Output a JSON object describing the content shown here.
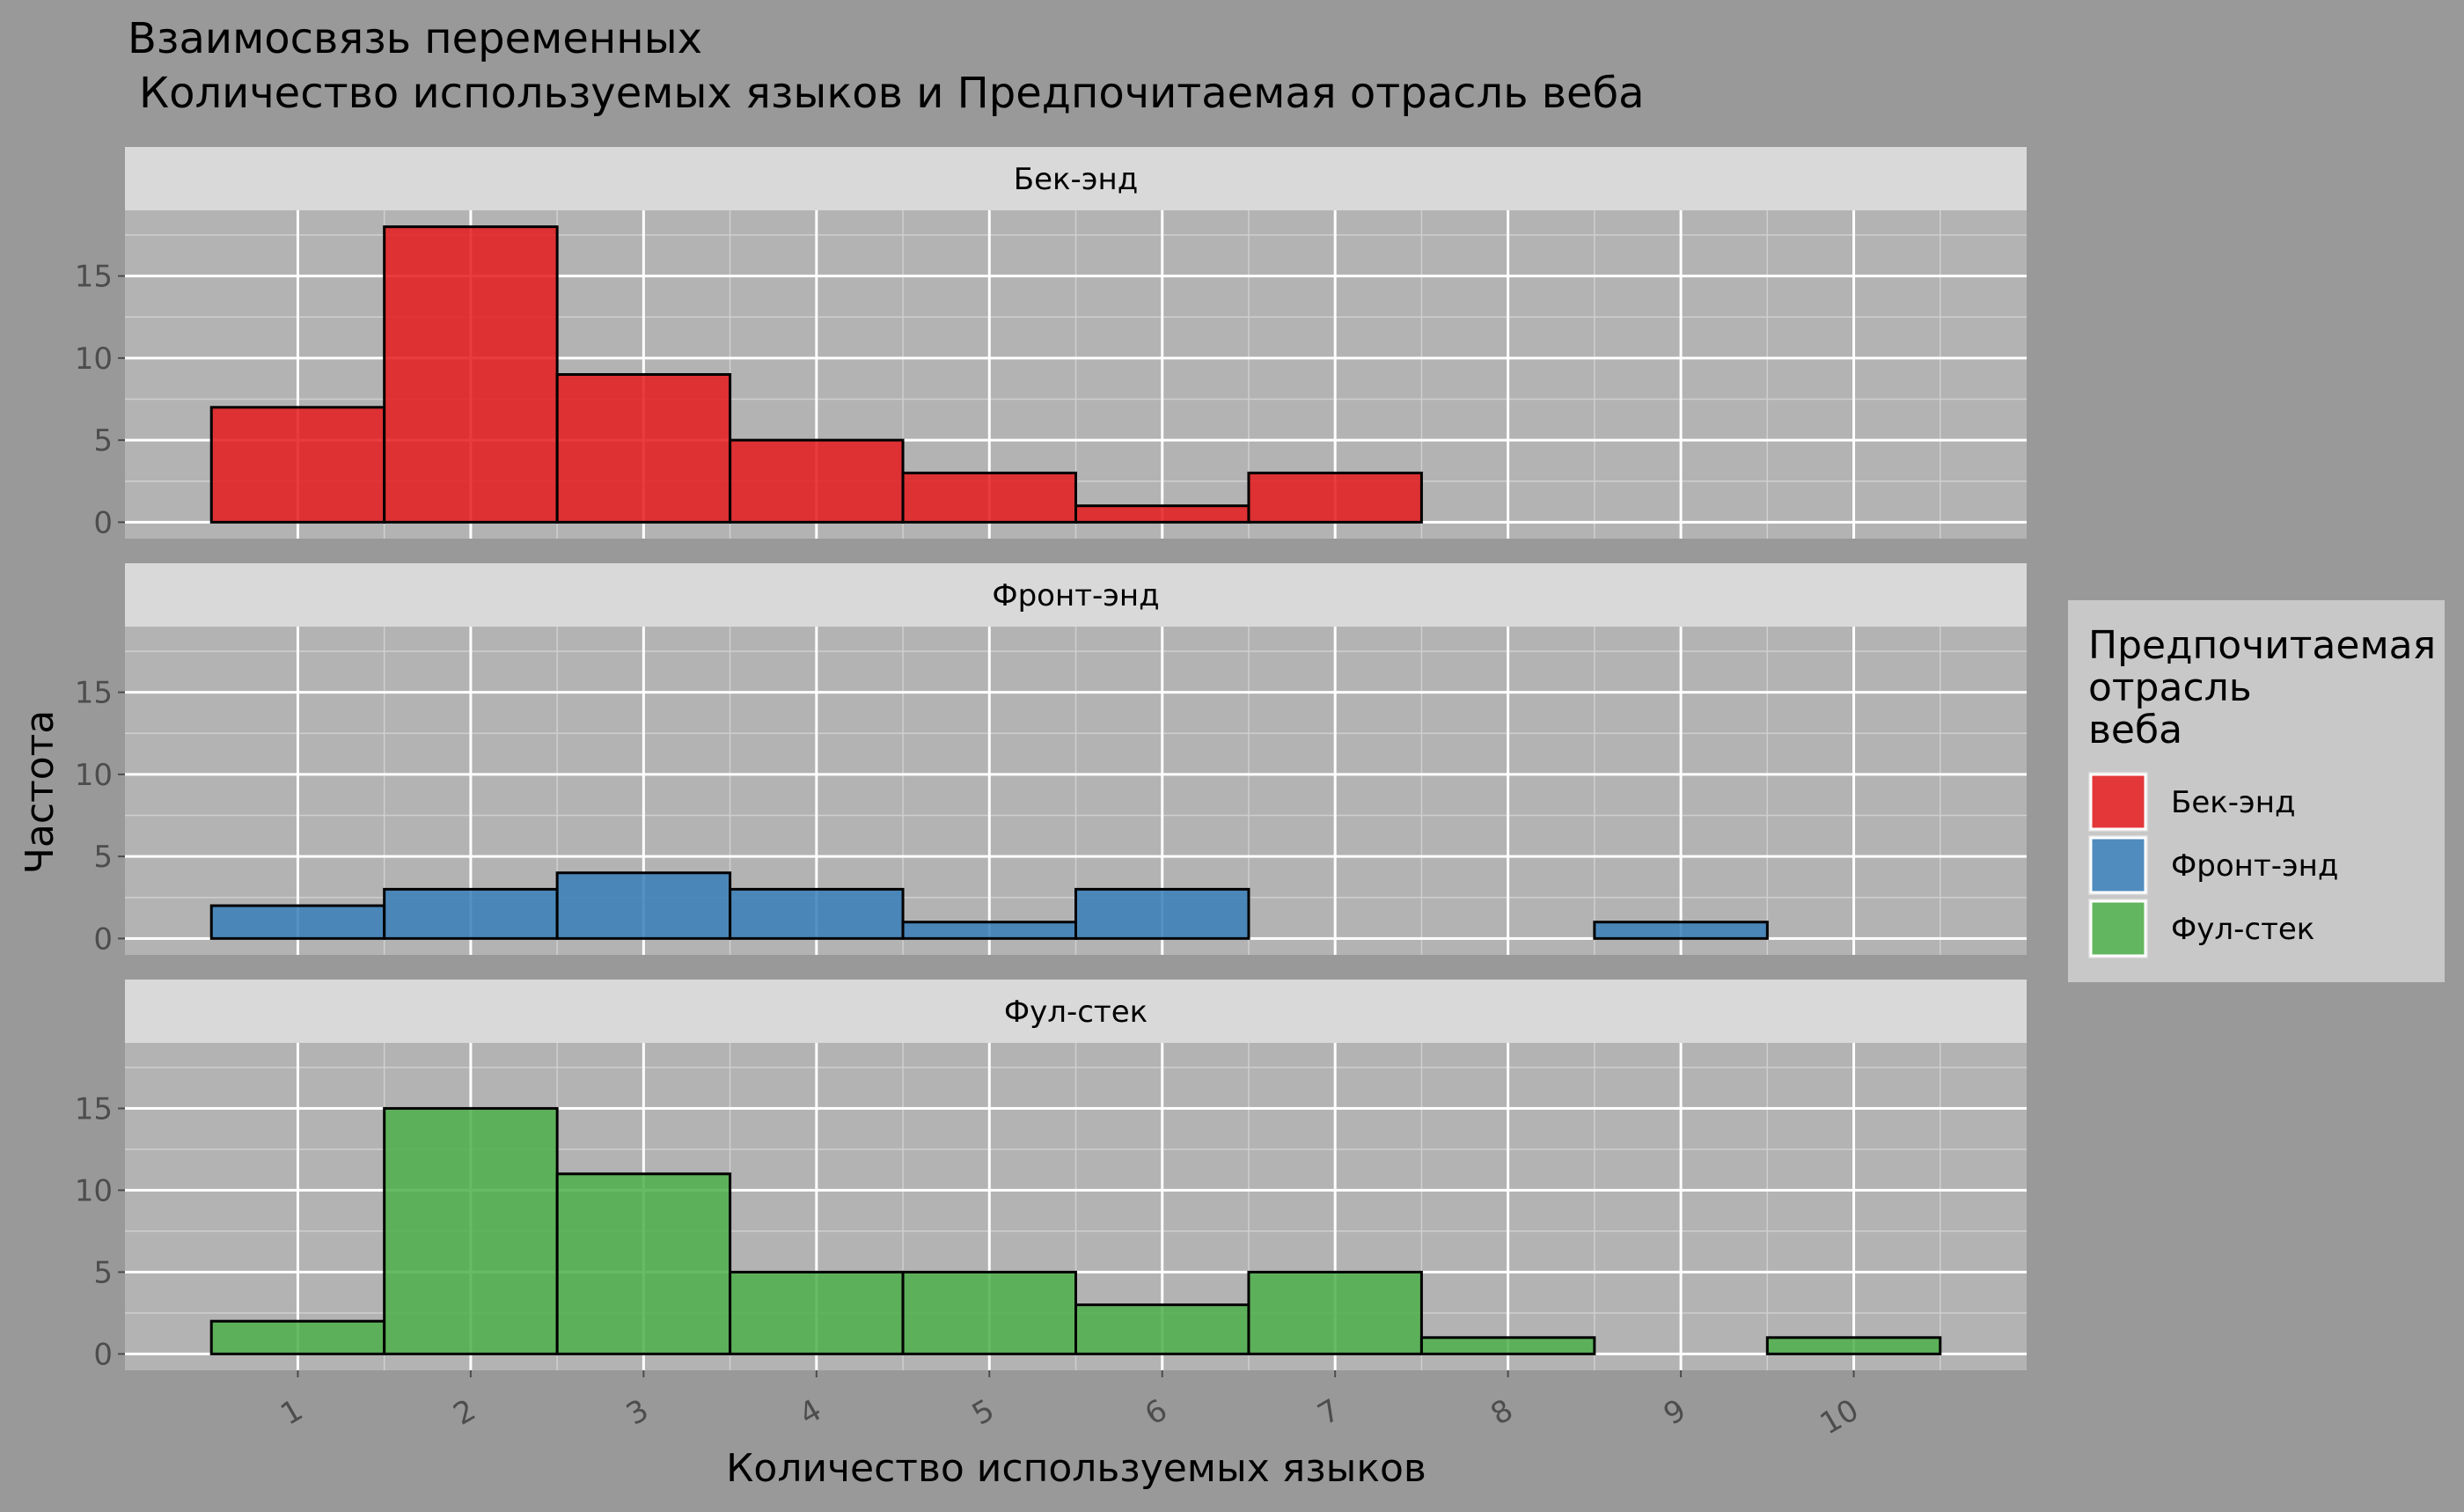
{
  "colors": {
    "background": "#999999",
    "panel": "#b3b3b3",
    "strip": "#d9d9d9",
    "legend_bg": "#c8c8c8",
    "grid_major": "#ffffff",
    "grid_minor": "#cfcfcf",
    "bar_outline": "#000000",
    "text": "#000000",
    "tick_text": "#4d4d4d"
  },
  "chart_data": {
    "type": "bar",
    "title": "Взаимосвязь переменных",
    "subtitle": "Количество используемых языков и Предпочитаемая отрасль веба",
    "xlabel": "Количество используемых языков",
    "ylabel": "Частота",
    "categories": [
      1,
      2,
      3,
      4,
      5,
      6,
      7,
      8,
      9,
      10
    ],
    "x_tick_labels": [
      "1",
      "2",
      "3",
      "4",
      "5",
      "6",
      "7",
      "8",
      "9",
      "10"
    ],
    "xlim": [
      0,
      11
    ],
    "ylim": [
      -1,
      19
    ],
    "y_ticks": [
      0,
      5,
      10,
      15
    ],
    "y_tick_labels": [
      "0",
      "5",
      "10",
      "15"
    ],
    "grid": true,
    "facets": [
      {
        "name": "Бек-энд",
        "color": "#e41a1c",
        "values": [
          7,
          18,
          9,
          5,
          3,
          1,
          3,
          0,
          0,
          0
        ]
      },
      {
        "name": "Фронт-энд",
        "color": "#377eb8",
        "values": [
          2,
          3,
          4,
          3,
          1,
          3,
          0,
          0,
          1,
          0
        ]
      },
      {
        "name": "Фул-стек",
        "color": "#4daf4a",
        "values": [
          2,
          15,
          11,
          5,
          5,
          3,
          5,
          1,
          0,
          1
        ]
      }
    ],
    "legend": {
      "title_lines": [
        "Предпочитаемая",
        "отрасль",
        "веба"
      ],
      "placement": "right",
      "items": [
        {
          "label": "Бек-энд",
          "color": "#e41a1c"
        },
        {
          "label": "Фронт-энд",
          "color": "#377eb8"
        },
        {
          "label": "Фул-стек",
          "color": "#4daf4a"
        }
      ]
    }
  }
}
